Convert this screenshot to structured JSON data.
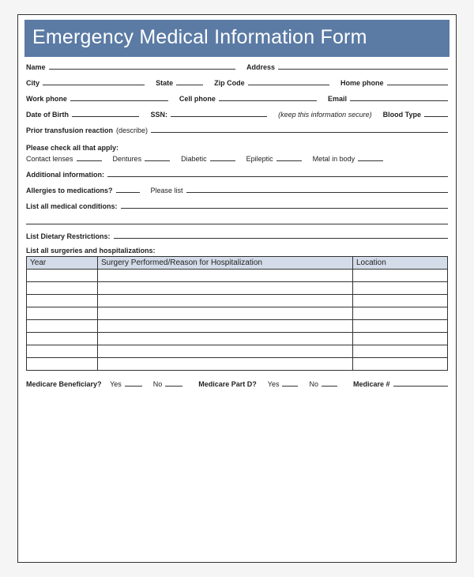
{
  "title": "Emergency Medical Information Form",
  "fields": {
    "name": "Name",
    "address": "Address",
    "city": "City",
    "state": "State",
    "zip": "Zip Code",
    "homephone": "Home phone",
    "workphone": "Work phone",
    "cellphone": "Cell phone",
    "email": "Email",
    "dob": "Date of Birth",
    "ssn": "SSN:",
    "ssn_note": "(keep this information secure)",
    "bloodtype": "Blood Type",
    "prior_transfusion": "Prior transfusion reaction",
    "prior_transfusion_desc": "(describe)",
    "check_all": "Please check all that apply:",
    "contact_lenses": "Contact lenses",
    "dentures": "Dentures",
    "diabetic": "Diabetic",
    "epileptic": "Epileptic",
    "metal": "Metal in body",
    "additional": "Additional information:",
    "allergies": "Allergies to medications?",
    "please_list": "Please list",
    "medical_conditions": "List all medical conditions:",
    "dietary": "List Dietary Restrictions:",
    "surgeries_header": "List all surgeries and hospitalizations:",
    "medicare_benef": "Medicare Beneficiary?",
    "yes": "Yes",
    "no": "No",
    "medicare_d": "Medicare Part D?",
    "medicare_num": "Medicare #"
  },
  "table": {
    "columns": [
      "Year",
      "Surgery Performed/Reason for Hospitalization",
      "Location"
    ],
    "empty_rows": 8
  },
  "colors": {
    "title_bg": "#5b7ba5",
    "title_fg": "#ffffff",
    "table_header_bg": "#d4dce9",
    "border": "#333333"
  }
}
